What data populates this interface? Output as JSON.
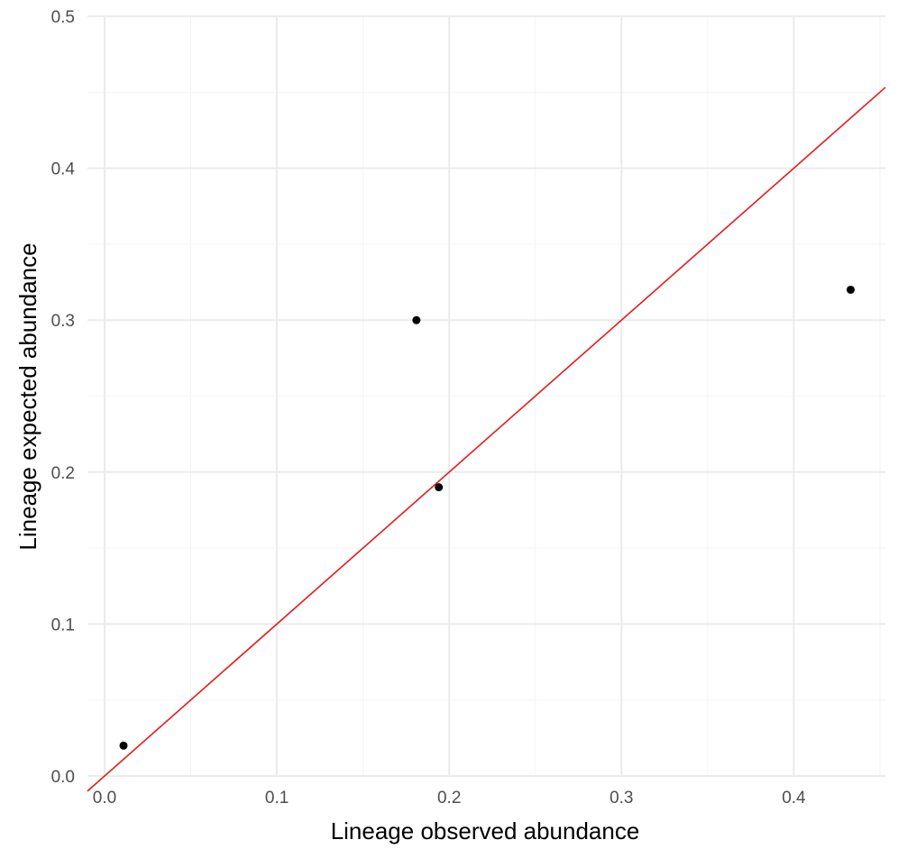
{
  "chart_data": {
    "type": "scatter",
    "xlabel": "Lineage observed abundance",
    "ylabel": "Lineage expected abundance",
    "xlim": [
      -0.01,
      0.455
    ],
    "ylim": [
      0,
      0.5
    ],
    "x_ticks": [
      0.0,
      0.1,
      0.2,
      0.3,
      0.4
    ],
    "x_tick_labels": [
      "0.0",
      "0.1",
      "0.2",
      "0.3",
      "0.4"
    ],
    "y_ticks": [
      0.0,
      0.1,
      0.2,
      0.3,
      0.4,
      0.5
    ],
    "y_tick_labels": [
      "0.0",
      "0.1",
      "0.2",
      "0.3",
      "0.4",
      "0.5"
    ],
    "grid": true,
    "legend": "none",
    "points": [
      {
        "x": 0.011,
        "y": 0.02
      },
      {
        "x": 0.181,
        "y": 0.3
      },
      {
        "x": 0.194,
        "y": 0.19
      },
      {
        "x": 0.433,
        "y": 0.32
      }
    ],
    "reference_line": {
      "slope": 1,
      "intercept": 0,
      "color": "#e41a1c"
    },
    "colors": {
      "points": "#000000",
      "line": "#e41a1c",
      "grid_major": "#ebebeb",
      "grid_minor": "#f5f5f5",
      "tick_text": "#4d4d4d",
      "axis_title": "#000000",
      "background": "#ffffff"
    }
  }
}
